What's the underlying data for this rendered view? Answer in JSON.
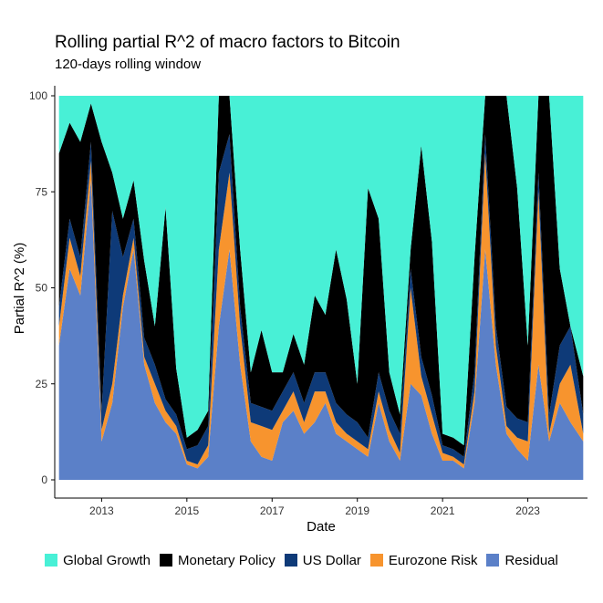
{
  "chart_data": {
    "type": "area",
    "stacked": true,
    "title": "Rolling partial R^2 of macro factors to Bitcoin",
    "subtitle": "120-days rolling window",
    "xlabel": "Date",
    "ylabel": "Partial R^2 (%)",
    "xlim": [
      2011.9,
      2024.4
    ],
    "ylim": [
      0,
      100
    ],
    "x_ticks": [
      2013,
      2015,
      2017,
      2019,
      2021,
      2023
    ],
    "y_ticks": [
      0,
      25,
      50,
      75,
      100
    ],
    "grid": false,
    "legend_position": "bottom",
    "x": [
      2012.0,
      2012.25,
      2012.5,
      2012.75,
      2013.0,
      2013.25,
      2013.5,
      2013.75,
      2014.0,
      2014.25,
      2014.5,
      2014.75,
      2015.0,
      2015.25,
      2015.5,
      2015.75,
      2016.0,
      2016.25,
      2016.5,
      2016.75,
      2017.0,
      2017.25,
      2017.5,
      2017.75,
      2018.0,
      2018.25,
      2018.5,
      2018.75,
      2019.0,
      2019.25,
      2019.5,
      2019.75,
      2020.0,
      2020.25,
      2020.5,
      2020.75,
      2021.0,
      2021.25,
      2021.5,
      2021.75,
      2022.0,
      2022.25,
      2022.5,
      2022.75,
      2023.0,
      2023.25,
      2023.5,
      2023.75,
      2024.0,
      2024.3
    ],
    "series": [
      {
        "name": "Residual",
        "color": "#5b80c8",
        "values": [
          35,
          55,
          48,
          78,
          10,
          20,
          45,
          60,
          30,
          20,
          15,
          12,
          4,
          3,
          6,
          40,
          60,
          30,
          10,
          6,
          5,
          15,
          18,
          12,
          15,
          20,
          12,
          10,
          8,
          6,
          20,
          10,
          5,
          25,
          22,
          12,
          5,
          5,
          3,
          20,
          60,
          30,
          12,
          8,
          5,
          30,
          10,
          20,
          15,
          10
        ]
      },
      {
        "name": "Eurozone Risk",
        "color": "#f7942e",
        "values": [
          5,
          8,
          5,
          5,
          3,
          5,
          3,
          3,
          2,
          5,
          3,
          2,
          1,
          1,
          3,
          20,
          20,
          10,
          5,
          8,
          8,
          3,
          5,
          3,
          8,
          3,
          3,
          2,
          2,
          2,
          3,
          3,
          2,
          25,
          5,
          5,
          2,
          1,
          1,
          3,
          25,
          5,
          2,
          3,
          5,
          45,
          2,
          5,
          15,
          2
        ]
      },
      {
        "name": "US Dollar",
        "color": "#0e3a78",
        "values": [
          5,
          5,
          5,
          5,
          5,
          45,
          10,
          5,
          5,
          5,
          3,
          3,
          3,
          5,
          5,
          20,
          10,
          5,
          5,
          5,
          5,
          5,
          5,
          5,
          5,
          5,
          5,
          5,
          5,
          3,
          5,
          5,
          5,
          5,
          5,
          5,
          2,
          2,
          2,
          5,
          5,
          5,
          5,
          5,
          5,
          5,
          5,
          10,
          10,
          5
        ]
      },
      {
        "name": "Monetary Policy",
        "color": "#000000",
        "values": [
          40,
          25,
          30,
          10,
          70,
          10,
          10,
          10,
          20,
          10,
          50,
          12,
          3,
          4,
          4,
          20,
          10,
          15,
          8,
          20,
          10,
          5,
          10,
          10,
          20,
          15,
          40,
          30,
          10,
          65,
          40,
          10,
          5,
          5,
          55,
          40,
          3,
          3,
          3,
          30,
          10,
          60,
          81,
          60,
          20,
          20,
          83,
          20,
          0,
          10
        ]
      },
      {
        "name": "Global Growth",
        "color": "#48f0d6",
        "values": [
          15,
          7,
          12,
          2,
          12,
          20,
          32,
          22,
          43,
          60,
          29,
          71,
          89,
          87,
          82,
          0,
          0,
          40,
          72,
          61,
          72,
          72,
          62,
          70,
          52,
          57,
          40,
          53,
          75,
          24,
          32,
          72,
          83,
          40,
          13,
          38,
          88,
          89,
          91,
          42,
          0,
          0,
          0,
          24,
          65,
          0,
          0,
          45,
          60,
          73
        ]
      }
    ],
    "legend_order": [
      "Global Growth",
      "Monetary Policy",
      "US Dollar",
      "Eurozone Risk",
      "Residual"
    ]
  }
}
